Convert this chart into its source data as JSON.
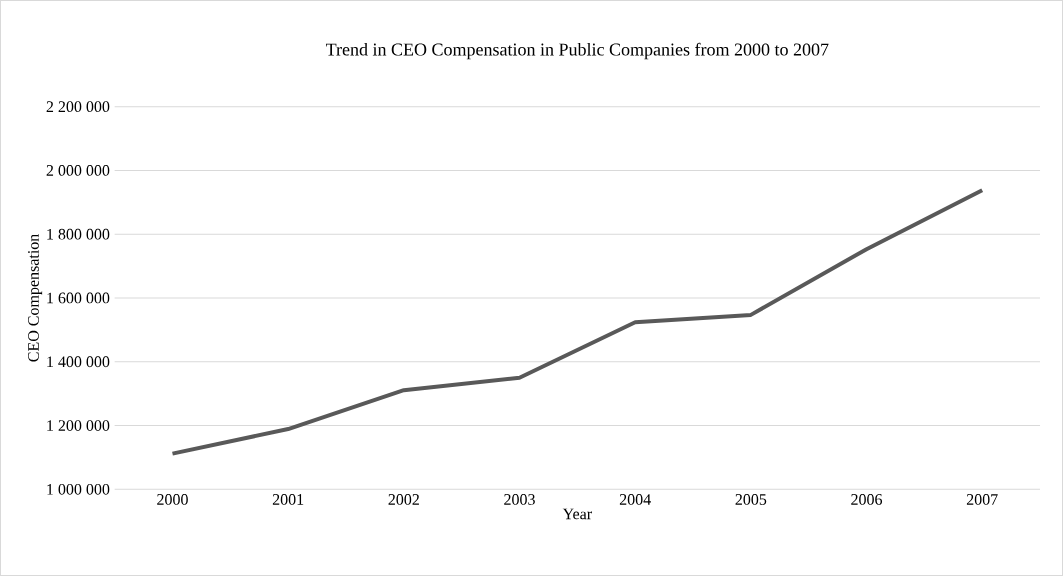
{
  "chart_data": {
    "type": "line",
    "title": "Trend in CEO Compensation in Public Companies from 2000 to 2007",
    "xlabel": "Year",
    "ylabel": "CEO Compensation",
    "categories": [
      "2000",
      "2001",
      "2002",
      "2003",
      "2004",
      "2005",
      "2006",
      "2007"
    ],
    "series": [
      {
        "color": "#595959",
        "values": [
          1112000,
          1189000,
          1311000,
          1350000,
          1524000,
          1547000,
          1753000,
          1938000
        ]
      }
    ],
    "ylim": [
      1000000,
      2200000
    ],
    "yticks": [
      {
        "value": 1000000,
        "label": "1 000 000"
      },
      {
        "value": 1200000,
        "label": "1 200 000"
      },
      {
        "value": 1400000,
        "label": "1 400 000"
      },
      {
        "value": 1600000,
        "label": "1 600 000"
      },
      {
        "value": 1800000,
        "label": "1 800 000"
      },
      {
        "value": 2000000,
        "label": "2 000 000"
      },
      {
        "value": 2200000,
        "label": "2 200 000"
      }
    ],
    "grid": "y",
    "marker": "none",
    "line_style": "solid"
  }
}
